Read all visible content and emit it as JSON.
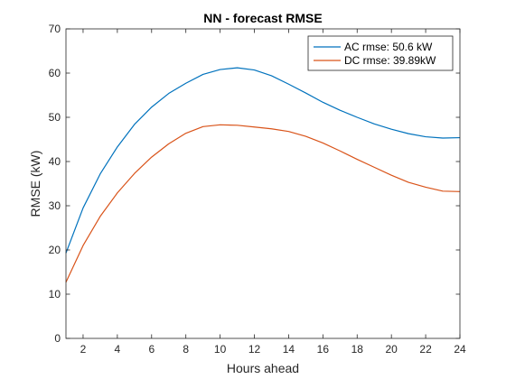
{
  "chart_data": {
    "type": "line",
    "title": "NN - forecast RMSE",
    "xlabel": "Hours ahead",
    "ylabel": "RMSE (kW)",
    "xlim": [
      1,
      24
    ],
    "ylim": [
      0,
      70
    ],
    "xticks": [
      2,
      4,
      6,
      8,
      10,
      12,
      14,
      16,
      18,
      20,
      22,
      24
    ],
    "yticks": [
      0,
      10,
      20,
      30,
      40,
      50,
      60,
      70
    ],
    "grid": false,
    "legend_position": "top-right",
    "x": [
      1,
      2,
      3,
      4,
      5,
      6,
      7,
      8,
      9,
      10,
      11,
      12,
      13,
      14,
      15,
      16,
      17,
      18,
      19,
      20,
      21,
      22,
      23,
      24
    ],
    "series": [
      {
        "name": "AC rmse: 50.6 kW",
        "color": "#0072BD",
        "values": [
          19.3,
          29.5,
          37.2,
          43.3,
          48.4,
          52.3,
          55.4,
          57.7,
          59.7,
          60.8,
          61.2,
          60.7,
          59.4,
          57.5,
          55.5,
          53.4,
          51.6,
          50.0,
          48.5,
          47.3,
          46.3,
          45.6,
          45.3,
          45.4
        ]
      },
      {
        "name": "DC rmse: 39.89kW",
        "color": "#D95319",
        "values": [
          12.7,
          21.0,
          27.6,
          32.9,
          37.3,
          41.0,
          44.0,
          46.4,
          47.9,
          48.3,
          48.2,
          47.8,
          47.4,
          46.8,
          45.7,
          44.2,
          42.4,
          40.5,
          38.7,
          36.9,
          35.3,
          34.2,
          33.3,
          33.2
        ]
      }
    ]
  }
}
